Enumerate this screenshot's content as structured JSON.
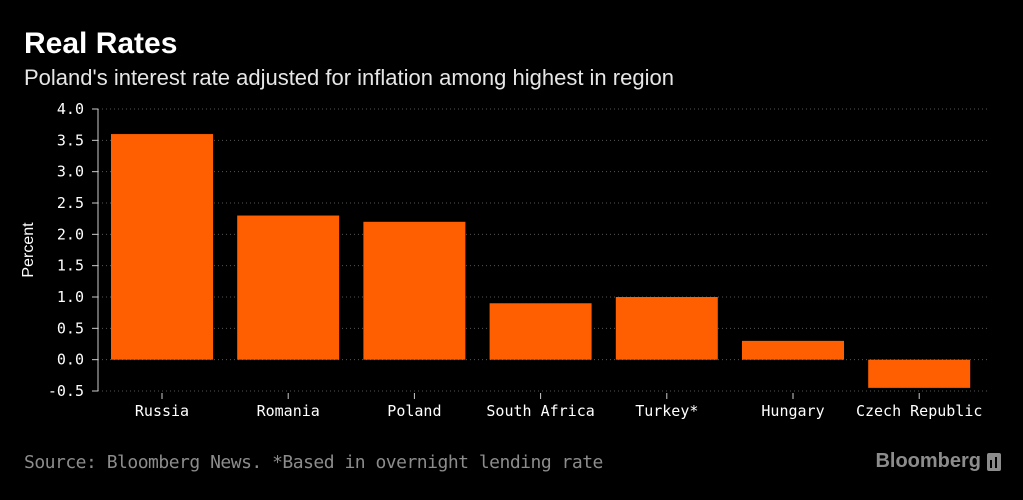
{
  "chart_data": {
    "type": "bar",
    "title": "Real Rates",
    "subtitle": "Poland's interest rate adjusted for inflation among highest in region",
    "categories": [
      "Russia",
      "Romania",
      "Poland",
      "South Africa",
      "Turkey*",
      "Hungary",
      "Czech Republic"
    ],
    "values": [
      3.6,
      2.3,
      2.2,
      0.9,
      1.0,
      0.3,
      -0.45
    ],
    "ylabel": "Percent",
    "xlabel": "",
    "ylim": [
      -0.5,
      4.0
    ],
    "yticks": [
      -0.5,
      0.0,
      0.5,
      1.0,
      1.5,
      2.0,
      2.5,
      3.0,
      3.5,
      4.0
    ],
    "ytick_labels": [
      "-0.5",
      "0.0",
      "0.5",
      "1.0",
      "1.5",
      "2.0",
      "2.5",
      "3.0",
      "3.5",
      "4.0"
    ],
    "grid": true,
    "bar_color": "#ff5f00"
  },
  "footer": {
    "source": "Source: Bloomberg News. *Based in overnight lending rate",
    "brand": "Bloomberg"
  },
  "colors": {
    "background": "#000000",
    "text": "#ffffff",
    "muted": "#8c8c8c",
    "grid": "#555555"
  }
}
